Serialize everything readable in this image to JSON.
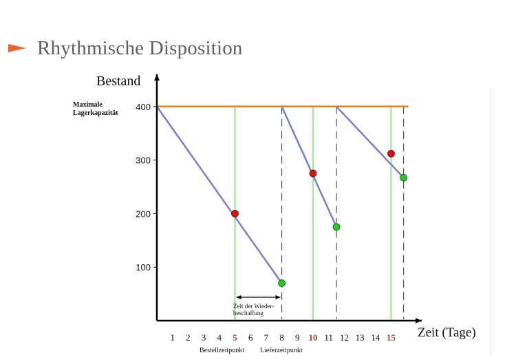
{
  "slide": {
    "title": "Rhythmische Disposition",
    "accent_color": "#e8652b"
  },
  "chart_data": {
    "type": "line",
    "ylabel": "Bestand",
    "xlabel": "Zeit (Tage)",
    "ylim": [
      0,
      450
    ],
    "xlim": [
      0,
      16.3
    ],
    "yticks": [
      100,
      200,
      300,
      400
    ],
    "xticks": [
      1,
      2,
      3,
      4,
      5,
      6,
      7,
      8,
      9,
      10,
      11,
      12,
      13,
      14,
      15
    ],
    "highlighted_xticks": [
      5,
      10,
      15
    ],
    "max_capacity": {
      "label_line1": "Maximale",
      "label_line2": "Lagerkapazität",
      "value": 400,
      "color": "#e87a10"
    },
    "series": [
      {
        "segment": 1,
        "x": [
          0,
          8
        ],
        "y": [
          400,
          70
        ],
        "color": "#7b7bd9"
      },
      {
        "segment": 2,
        "x": [
          8,
          11.5
        ],
        "y": [
          400,
          175
        ],
        "color": "#7b7bd9"
      },
      {
        "segment": 3,
        "x": [
          11.5,
          15.8
        ],
        "y": [
          400,
          267
        ],
        "color": "#7b7bd9"
      }
    ],
    "order_points": {
      "color": "#dd1111",
      "points": [
        {
          "x": 5,
          "y": 200
        },
        {
          "x": 10,
          "y": 275
        },
        {
          "x": 15,
          "y": 312
        }
      ]
    },
    "delivery_points": {
      "color": "#22cc22",
      "points": [
        {
          "x": 8,
          "y": 70
        },
        {
          "x": 11.5,
          "y": 175
        },
        {
          "x": 15.8,
          "y": 267
        }
      ]
    },
    "order_lines_x": [
      5,
      10,
      15
    ],
    "delivery_lines_x": [
      8,
      11.5,
      15.8
    ],
    "replenishment": {
      "from": 5,
      "to": 8,
      "label_line1": "Zeit der Wieder-",
      "label_line2": "beschaffung"
    },
    "bottom_labels": {
      "order": "Bestellzeitpunkt",
      "delivery": "Lieferzeitpunkt"
    }
  }
}
